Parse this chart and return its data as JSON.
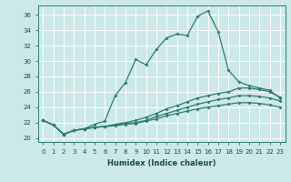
{
  "title": "",
  "xlabel": "Humidex (Indice chaleur)",
  "background_color": "#cce8e8",
  "grid_color": "#ffffff",
  "line_color": "#2e7d6e",
  "xlim": [
    -0.5,
    23.5
  ],
  "ylim": [
    19.5,
    37.2
  ],
  "xticks": [
    0,
    1,
    2,
    3,
    4,
    5,
    6,
    7,
    8,
    9,
    10,
    11,
    12,
    13,
    14,
    15,
    16,
    17,
    18,
    19,
    20,
    21,
    22,
    23
  ],
  "yticks": [
    20,
    22,
    24,
    26,
    28,
    30,
    32,
    34,
    36
  ],
  "line1_x": [
    0,
    1,
    2,
    3,
    4,
    5,
    6,
    7,
    8,
    9,
    10,
    11,
    12,
    13,
    14,
    15,
    16,
    17,
    18,
    19,
    20,
    21,
    22,
    23
  ],
  "line1_y": [
    22.3,
    21.7,
    20.5,
    21.0,
    21.2,
    21.8,
    22.2,
    25.5,
    27.2,
    30.2,
    29.5,
    31.5,
    33.0,
    33.5,
    33.3,
    35.8,
    36.5,
    33.8,
    28.8,
    27.3,
    26.8,
    26.5,
    26.2,
    25.2
  ],
  "line2_x": [
    0,
    1,
    2,
    3,
    4,
    5,
    6,
    7,
    8,
    9,
    10,
    11,
    12,
    13,
    14,
    15,
    16,
    17,
    18,
    19,
    20,
    21,
    22,
    23
  ],
  "line2_y": [
    22.3,
    21.7,
    20.5,
    21.0,
    21.2,
    21.4,
    21.5,
    21.8,
    22.0,
    22.3,
    22.7,
    23.2,
    23.8,
    24.2,
    24.7,
    25.2,
    25.5,
    25.8,
    26.0,
    26.5,
    26.5,
    26.3,
    26.0,
    25.3
  ],
  "line3_x": [
    0,
    1,
    2,
    3,
    4,
    5,
    6,
    7,
    8,
    9,
    10,
    11,
    12,
    13,
    14,
    15,
    16,
    17,
    18,
    19,
    20,
    21,
    22,
    23
  ],
  "line3_y": [
    22.3,
    21.7,
    20.5,
    21.0,
    21.2,
    21.4,
    21.5,
    21.7,
    21.9,
    22.0,
    22.3,
    22.8,
    23.2,
    23.6,
    24.0,
    24.4,
    24.7,
    25.0,
    25.2,
    25.5,
    25.5,
    25.4,
    25.2,
    24.8
  ],
  "line4_x": [
    0,
    1,
    2,
    3,
    4,
    5,
    6,
    7,
    8,
    9,
    10,
    11,
    12,
    13,
    14,
    15,
    16,
    17,
    18,
    19,
    20,
    21,
    22,
    23
  ],
  "line4_y": [
    22.3,
    21.7,
    20.5,
    21.0,
    21.2,
    21.4,
    21.5,
    21.6,
    21.8,
    21.9,
    22.2,
    22.5,
    22.9,
    23.2,
    23.5,
    23.8,
    24.0,
    24.2,
    24.4,
    24.6,
    24.6,
    24.5,
    24.3,
    24.0
  ],
  "xlabel_fontsize": 6.0,
  "tick_fontsize": 5.0,
  "lw": 0.9,
  "ms": 2.0
}
